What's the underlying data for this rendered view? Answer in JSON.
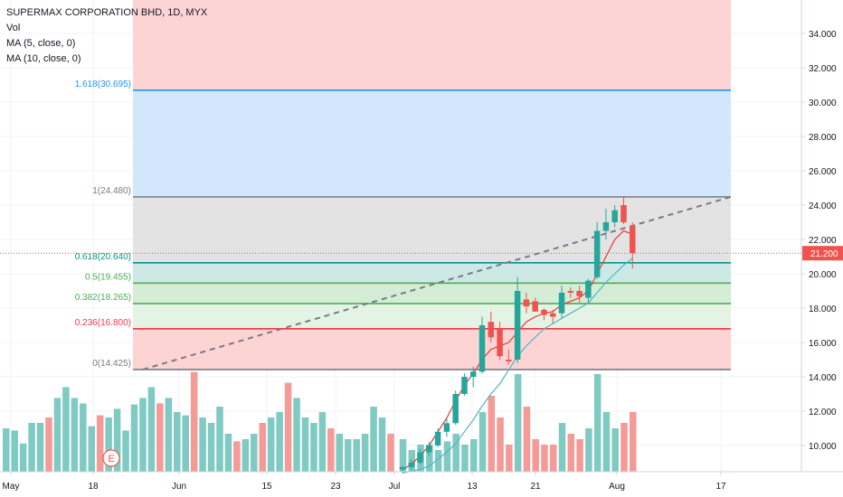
{
  "legend": {
    "title": "SUPERMAX CORPORATION BHD, 1D, MYX",
    "vol": "Vol",
    "ma5": "MA (5, close, 0)",
    "ma10": "MA (10, close, 0)"
  },
  "colors": {
    "up": "#26a69a",
    "down": "#ef5350",
    "up_volume": "#7fcac3",
    "down_volume": "#f49a97",
    "ma5": "#e53935",
    "ma10": "#4fb6c4",
    "price_tag": "#ef5350",
    "fib_1618": "#2196f3",
    "fib_1": "#787b86",
    "fib_0618": "#009688",
    "fib_05": "#4caf50",
    "fib_0382": "#4caf50",
    "fib_0236": "#f23645",
    "fib_0": "#787b86",
    "zone_top": "#fcd4d4",
    "zone_blue": "#d2e7fb",
    "zone_grey": "#e3e3e4",
    "zone_teal": "#cde9e6",
    "zone_green": "#d5ecd6",
    "zone_light_green": "#e4f3e4",
    "zone_bottom": "#fcd4d4",
    "grid": "#f0f3fa"
  },
  "event_marker": "E",
  "chart_data": {
    "type": "candlestick",
    "title": "SUPERMAX CORPORATION BHD, 1D, MYX",
    "xlabel": "",
    "ylabel": "",
    "ylim": [
      8.6,
      36.0
    ],
    "x_tick_labels": [
      "May",
      "18",
      "Jun",
      "15",
      "23",
      "Jul",
      "13",
      "21",
      "Aug",
      "17"
    ],
    "y_tick_labels": [
      "10.000",
      "12.000",
      "14.000",
      "16.000",
      "18.000",
      "20.000",
      "22.000",
      "24.000",
      "26.000",
      "28.000",
      "30.000",
      "32.000",
      "34.000"
    ],
    "y_ticks": [
      10,
      12,
      14,
      16,
      18,
      20,
      22,
      24,
      26,
      28,
      30,
      32,
      34
    ],
    "last_price": "21.200",
    "last_price_value": 21.2,
    "grid": true,
    "fib_levels": [
      {
        "label": "1.618(30.695)",
        "value": 30.695,
        "color_key": "fib_1618"
      },
      {
        "label": "1(24.480)",
        "value": 24.48,
        "color_key": "fib_1"
      },
      {
        "label": "0.618(20.640)",
        "value": 20.64,
        "color_key": "fib_0618"
      },
      {
        "label": "0.5(19.455)",
        "value": 19.455,
        "color_key": "fib_05"
      },
      {
        "label": "0.382(18.265)",
        "value": 18.265,
        "color_key": "fib_0382"
      },
      {
        "label": "0.236(16.800)",
        "value": 16.8,
        "color_key": "fib_0236"
      },
      {
        "label": "0(14.425)",
        "value": 14.425,
        "color_key": "fib_0"
      }
    ],
    "fib_trendline": [
      [
        14.425
      ],
      [
        24.48
      ]
    ],
    "candles": [
      {
        "o": 8.6,
        "h": 8.8,
        "l": 8.4,
        "c": 8.75
      },
      {
        "o": 8.75,
        "h": 9.2,
        "l": 8.6,
        "c": 9.0
      },
      {
        "o": 9.0,
        "h": 9.8,
        "l": 8.9,
        "c": 9.6
      },
      {
        "o": 9.6,
        "h": 10.2,
        "l": 9.4,
        "c": 10.0
      },
      {
        "o": 10.0,
        "h": 11.0,
        "l": 9.9,
        "c": 10.8
      },
      {
        "o": 10.8,
        "h": 11.6,
        "l": 10.5,
        "c": 11.3
      },
      {
        "o": 11.3,
        "h": 13.2,
        "l": 11.2,
        "c": 13.0
      },
      {
        "o": 13.0,
        "h": 14.2,
        "l": 12.9,
        "c": 14.0
      },
      {
        "o": 14.0,
        "h": 14.6,
        "l": 13.4,
        "c": 14.3
      },
      {
        "o": 14.3,
        "h": 17.5,
        "l": 14.2,
        "c": 17.0
      },
      {
        "o": 17.2,
        "h": 17.8,
        "l": 16.0,
        "c": 16.3
      },
      {
        "o": 16.8,
        "h": 17.2,
        "l": 15.0,
        "c": 15.2
      },
      {
        "o": 15.0,
        "h": 15.6,
        "l": 14.7,
        "c": 14.9
      },
      {
        "o": 15.0,
        "h": 19.8,
        "l": 14.8,
        "c": 19.0
      },
      {
        "o": 18.5,
        "h": 18.9,
        "l": 17.7,
        "c": 18.1
      },
      {
        "o": 18.4,
        "h": 18.6,
        "l": 17.8,
        "c": 17.8
      },
      {
        "o": 17.9,
        "h": 18.0,
        "l": 17.3,
        "c": 17.6
      },
      {
        "o": 17.7,
        "h": 17.9,
        "l": 17.1,
        "c": 17.5
      },
      {
        "o": 17.7,
        "h": 19.3,
        "l": 17.4,
        "c": 18.9
      },
      {
        "o": 19.0,
        "h": 19.2,
        "l": 18.6,
        "c": 18.9
      },
      {
        "o": 19.0,
        "h": 19.3,
        "l": 18.3,
        "c": 18.7
      },
      {
        "o": 18.6,
        "h": 19.7,
        "l": 18.3,
        "c": 19.6
      },
      {
        "o": 19.8,
        "h": 23.0,
        "l": 19.7,
        "c": 22.5
      },
      {
        "o": 22.5,
        "h": 23.8,
        "l": 22.0,
        "c": 23.0
      },
      {
        "o": 23.0,
        "h": 24.0,
        "l": 22.7,
        "c": 23.7
      },
      {
        "o": 24.0,
        "h": 24.5,
        "l": 22.9,
        "c": 23.0
      },
      {
        "o": 22.8,
        "h": 23.0,
        "l": 20.3,
        "c": 21.2
      }
    ],
    "volume": [
      0.3,
      0.2,
      0.25,
      0.25,
      0.2,
      0.28,
      0.35,
      0.25,
      0.3,
      0.55,
      0.7,
      0.5,
      0.25,
      0.9,
      0.6,
      0.3,
      0.25,
      0.25,
      0.45,
      0.35,
      0.3,
      0.4,
      0.9,
      0.55,
      0.4,
      0.45,
      0.55
    ],
    "volume_history": [
      0.4,
      0.38,
      0.26,
      0.45,
      0.45,
      0.5,
      0.68,
      0.78,
      0.68,
      0.63,
      0.42,
      0.52,
      0.5,
      0.58,
      0.38,
      0.62,
      0.68,
      0.78,
      0.63,
      0.68,
      0.55,
      0.52,
      0.92,
      0.5,
      0.45,
      0.6,
      0.35,
      0.28,
      0.3,
      0.35,
      0.45,
      0.5,
      0.55,
      0.82,
      0.68,
      0.5,
      0.45,
      0.55,
      0.4,
      0.35,
      0.3,
      0.3,
      0.35,
      0.6,
      0.5,
      0.35,
      0.3,
      0.28
    ],
    "volume_history_up": [
      true,
      true,
      true,
      true,
      true,
      false,
      true,
      true,
      true,
      true,
      true,
      false,
      true,
      true,
      true,
      true,
      true,
      true,
      false,
      true,
      true,
      true,
      false,
      true,
      true,
      true,
      true,
      false,
      true,
      true,
      false,
      true,
      true,
      false,
      true,
      true,
      true,
      true,
      false,
      true,
      true,
      true,
      true,
      true,
      true,
      false,
      true,
      true
    ],
    "ma5": [
      8.6,
      8.9,
      9.4,
      10.0,
      10.8,
      11.6,
      12.6,
      13.5,
      14.2,
      15.0,
      15.6,
      15.8,
      16.0,
      16.6,
      17.2,
      17.5,
      17.7,
      17.8,
      18.2,
      18.4,
      18.6,
      19.0,
      20.0,
      21.0,
      22.0,
      22.5,
      22.3
    ],
    "ma10": [
      8.4,
      8.5,
      8.6,
      8.8,
      9.2,
      9.6,
      10.1,
      10.8,
      11.5,
      12.3,
      13.0,
      13.6,
      14.4,
      15.2,
      15.8,
      16.3,
      16.8,
      17.1,
      17.4,
      17.7,
      18.0,
      18.3,
      18.9,
      19.5,
      20.0,
      20.5,
      20.9
    ]
  }
}
